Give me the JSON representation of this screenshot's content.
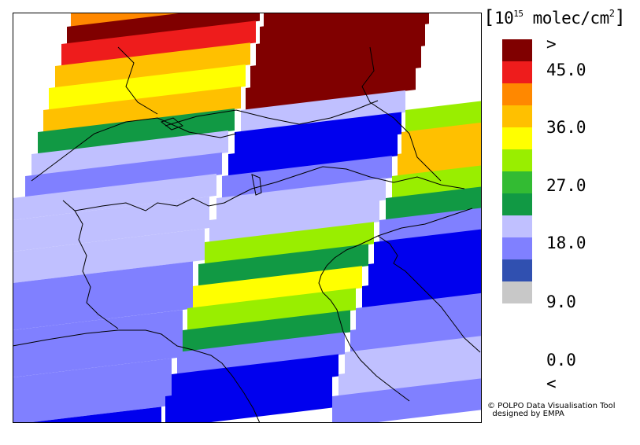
{
  "legend": {
    "unit_open": "[",
    "unit_prefix": "10",
    "unit_exponent": "15",
    "unit_text": " molec/cm",
    "unit_sup2": "2",
    "unit_close": "]",
    "top_label": ">",
    "bottom_label": "<",
    "tick_labels": [
      "45.0",
      "36.0",
      "27.0",
      "18.0",
      "9.0",
      "0.0"
    ],
    "colors": [
      "#800000",
      "#ee1c1c",
      "#ff8800",
      "#ffc000",
      "#ffff00",
      "#99ee00",
      "#33bb33",
      "#119944",
      "#c0c0ff",
      "#8080ff",
      "#3050b0",
      "#c8c8c8"
    ]
  },
  "credit": {
    "line1": "© POLPO Data Visualisation Tool",
    "line2": "designed by EMPA"
  },
  "map": {
    "region": "Northern Italy, Alps and Adriatic",
    "palette": {
      "dark_red": "#800000",
      "red": "#ee1c1c",
      "orange": "#ff8800",
      "amber": "#ffc000",
      "yellow": "#ffff00",
      "light_green": "#99ee00",
      "green": "#119944",
      "light_blue": "#c0c0ff",
      "mid_blue": "#8080ff",
      "blue": "#0000ee"
    }
  }
}
